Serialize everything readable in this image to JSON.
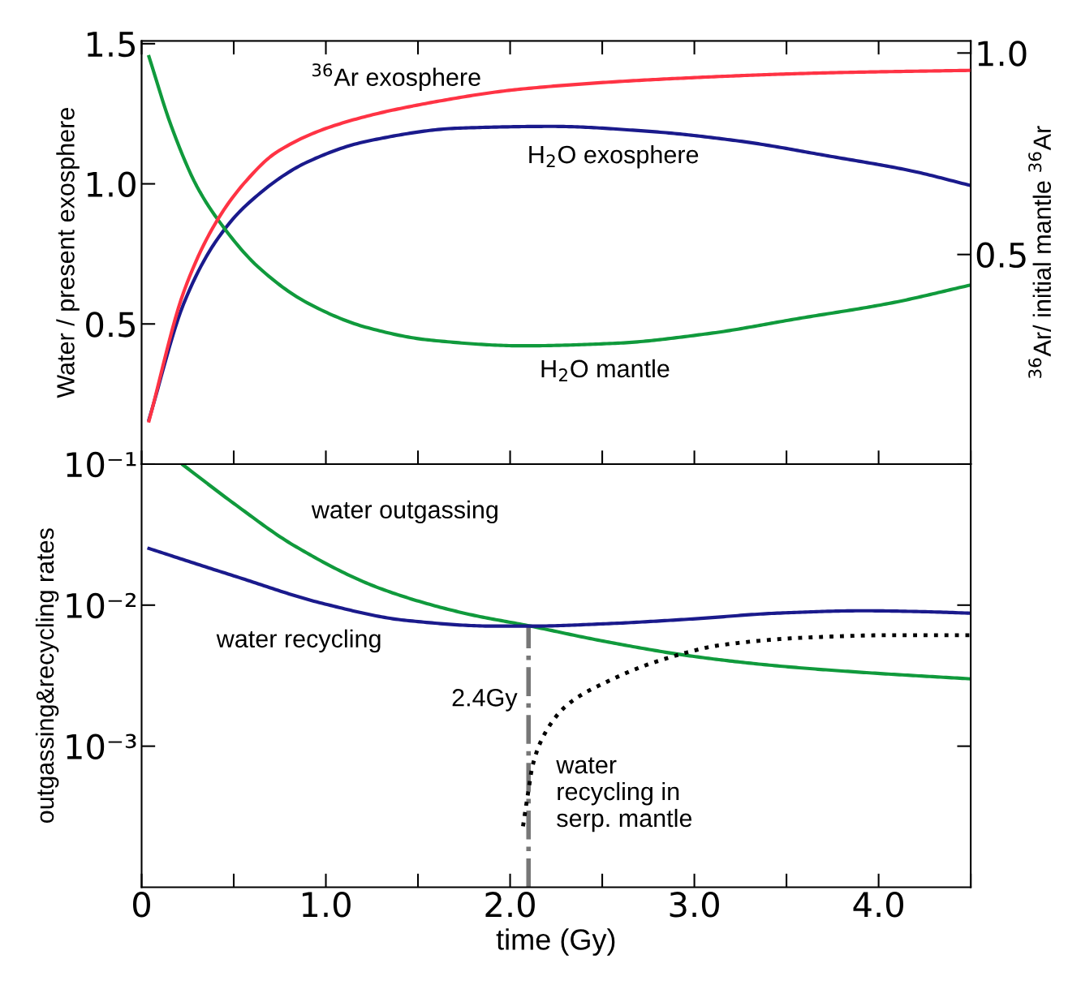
{
  "chart_data": [
    {
      "type": "line",
      "ylabel": "Water / present exosphere",
      "y2label": "$^{36}$Ar/ initial mantle $^{36}$Ar",
      "xlim": [
        0,
        4.5
      ],
      "xticks": [
        {
          "value": 0,
          "label": null
        },
        {
          "value": 1.0,
          "label": null
        },
        {
          "value": 2.0,
          "label": null
        },
        {
          "value": 3.0,
          "label": null
        },
        {
          "value": 4.0,
          "label": null
        }
      ],
      "ylim": [
        0,
        1.51
      ],
      "yticks": [
        0.5,
        {
          "value": 1.0,
          "label": "1.0"
        },
        1.5
      ],
      "y2lim": [
        -0.02,
        1.03
      ],
      "y2ticks": [
        0.5,
        {
          "value": 1.0,
          "label": "1.0"
        }
      ],
      "tick_labels": "y",
      "grid": false,
      "legend": false,
      "line_style": "solid",
      "series": [
        {
          "name": "$^{36}$Ar exosphere",
          "color": "#ff3344",
          "axis": "y2",
          "x": [
            0.04,
            0.23,
            0.4,
            0.57,
            0.73,
            1.06,
            1.57,
            2.07,
            2.91,
            3.74,
            4.5
          ],
          "values": [
            0.087,
            0.409,
            0.577,
            0.684,
            0.753,
            0.822,
            0.877,
            0.911,
            0.937,
            0.951,
            0.957
          ]
        },
        {
          "name": "H$_{2}$O exosphere",
          "color": "#1a1a8c",
          "x": [
            0.04,
            0.23,
            0.4,
            0.57,
            0.9,
            1.23,
            1.73,
            2.23,
            2.74,
            3.24,
            3.74,
            4.18,
            4.5
          ],
          "values": [
            0.159,
            0.575,
            0.792,
            0.925,
            1.078,
            1.153,
            1.199,
            1.205,
            1.188,
            1.153,
            1.098,
            1.046,
            0.994
          ]
        },
        {
          "name": "H$_{2}$O mantle",
          "color": "#109a3c",
          "x": [
            0.04,
            0.16,
            0.3,
            0.43,
            0.63,
            0.9,
            1.23,
            1.57,
            2.07,
            2.57,
            3.07,
            3.57,
            4.07,
            4.5
          ],
          "values": [
            1.454,
            1.208,
            0.991,
            0.858,
            0.705,
            0.575,
            0.486,
            0.442,
            0.422,
            0.431,
            0.465,
            0.52,
            0.575,
            0.639
          ]
        }
      ]
    },
    {
      "type": "line",
      "xlabel": "time (Gy)",
      "ylabel": "outgassing&recycling rates",
      "xlim": [
        0,
        4.5
      ],
      "xticks": [
        {
          "value": 0,
          "label": "0"
        },
        {
          "value": 1.0,
          "label": "1.0"
        },
        {
          "value": 2.0,
          "label": "2.0"
        },
        {
          "value": 3.0,
          "label": "3.0"
        },
        {
          "value": 4.0,
          "label": "4.0"
        }
      ],
      "log": "y",
      "ylim": [
        0.0001,
        0.1
      ],
      "yticks": [
        {
          "value": 0.1,
          "label": "10⁻¹"
        },
        {
          "value": 0.01,
          "label": "10⁻²"
        },
        {
          "value": 0.001,
          "label": "10⁻³"
        }
      ],
      "grid": false,
      "legend": false,
      "series": [
        {
          "name": "water outgassing",
          "color": "#109a3c",
          "line_style": "solid",
          "x": [
            0.225,
            0.515,
            0.824,
            1.29,
            1.75,
            2.11,
            2.52,
            2.99,
            3.45,
            3.92,
            4.5
          ],
          "values": [
            0.0986,
            0.0509,
            0.0266,
            0.0132,
            0.00877,
            0.0071,
            0.00551,
            0.00434,
            0.00371,
            0.00333,
            0.003
          ]
        },
        {
          "name": "water recycling",
          "color": "#1a1a8c",
          "line_style": "solid",
          "x": [
            0.04,
            0.515,
            0.98,
            1.44,
            1.91,
            2.12,
            2.52,
            2.99,
            3.45,
            3.92,
            4.22,
            4.5
          ],
          "values": [
            0.0252,
            0.0159,
            0.0103,
            0.00778,
            0.0071,
            0.0071,
            0.00738,
            0.00798,
            0.00877,
            0.00912,
            0.009,
            0.00877
          ]
        },
        {
          "name": "water\nrecycling in\nserp. mantle",
          "color": "#000000",
          "line_style": "dotted",
          "x": [
            2.07,
            2.1,
            2.12,
            2.19,
            2.31,
            2.52,
            2.83,
            3.15,
            3.61,
            4.07,
            4.5
          ],
          "values": [
            0.00027,
            0.00049,
            0.00071,
            0.00124,
            0.00196,
            0.00284,
            0.00412,
            0.00522,
            0.00589,
            0.00612,
            0.00612
          ]
        }
      ],
      "ref_lines": [
        {
          "axis": "x",
          "value": 2.1,
          "label": "2.4Gy",
          "color": "#777777",
          "line_style": "dashdot"
        }
      ]
    }
  ]
}
